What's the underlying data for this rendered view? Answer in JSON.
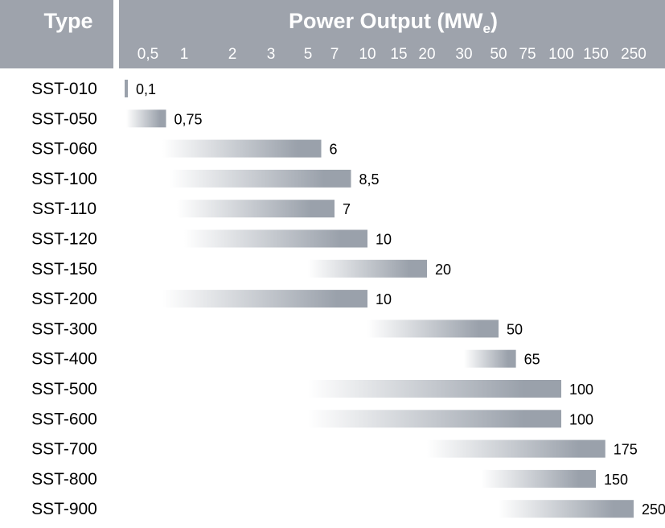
{
  "chart_data": {
    "type": "bar",
    "orientation": "horizontal",
    "x_scale": "nonlinear",
    "header": {
      "type_label": "Type",
      "title_main": "Power Output (MW",
      "title_sub": "e",
      "title_close": ")"
    },
    "x_ticks": [
      "0,5",
      "1",
      "2",
      "3",
      "5",
      "7",
      "10",
      "15",
      "20",
      "30",
      "50",
      "75",
      "100",
      "150",
      "250"
    ],
    "unit": "MWe",
    "categories": [
      "SST-010",
      "SST-050",
      "SST-060",
      "SST-100",
      "SST-110",
      "SST-120",
      "SST-150",
      "SST-200",
      "SST-300",
      "SST-400",
      "SST-500",
      "SST-600",
      "SST-700",
      "SST-800",
      "SST-900"
    ],
    "values": [
      0.1,
      0.75,
      6,
      8.5,
      7,
      10,
      20,
      10,
      50,
      65,
      100,
      100,
      175,
      150,
      250
    ],
    "value_labels": [
      "0,1",
      "0,75",
      "6",
      "8,5",
      "7",
      "10",
      "20",
      "10",
      "50",
      "65",
      "100",
      "100",
      "175",
      "150",
      "250"
    ],
    "range_start": [
      0.1,
      0.1,
      0.7,
      0.8,
      0.9,
      1.0,
      5,
      0.7,
      10,
      30,
      5,
      5,
      20,
      40,
      50
    ],
    "colors": {
      "header_bg": "#9ea3ac",
      "bar": "#9aa1ab",
      "header_text": "#ffffff"
    }
  }
}
